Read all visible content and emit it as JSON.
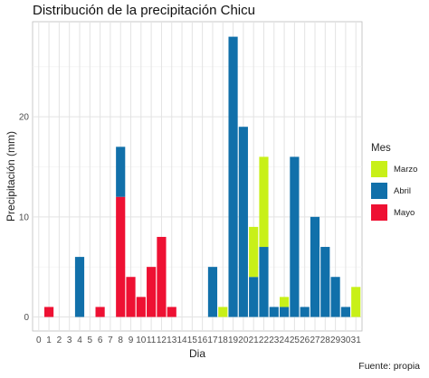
{
  "chart_data": {
    "type": "bar",
    "stacked": true,
    "title": "Distribución de la precipitación Chicu",
    "xlabel": "Dia",
    "ylabel": "Precipitación (mm)",
    "caption": "Fuente: propia",
    "legend_title": "Mes",
    "legend_position": "right",
    "grid": true,
    "categories": [
      0,
      1,
      2,
      3,
      4,
      5,
      6,
      7,
      8,
      9,
      10,
      11,
      12,
      13,
      14,
      15,
      16,
      17,
      18,
      19,
      20,
      21,
      22,
      23,
      24,
      25,
      26,
      27,
      28,
      29,
      30,
      31
    ],
    "y_ticks": [
      0,
      10,
      20
    ],
    "ylim": [
      -1.4,
      29.5
    ],
    "series": [
      {
        "name": "Marzo",
        "color": "#c8f018",
        "values": [
          0,
          0,
          0,
          0,
          0,
          0,
          0,
          0,
          0,
          0,
          0,
          0,
          0,
          0,
          0,
          0,
          0,
          0,
          1,
          0,
          0,
          5,
          9,
          0,
          1,
          0,
          0,
          0,
          0,
          0,
          0,
          3
        ]
      },
      {
        "name": "Abril",
        "color": "#1170aa",
        "values": [
          0,
          0,
          0,
          0,
          6,
          0,
          0,
          0,
          5,
          0,
          0,
          0,
          0,
          0,
          0,
          0,
          0,
          5,
          0,
          28,
          19,
          4,
          7,
          1,
          1,
          16,
          1,
          10,
          7,
          4,
          1,
          0
        ]
      },
      {
        "name": "Mayo",
        "color": "#ee1133",
        "values": [
          0,
          1,
          0,
          0,
          0,
          0,
          1,
          0,
          12,
          4,
          2,
          5,
          8,
          1,
          0,
          0,
          0,
          0,
          0,
          0,
          0,
          0,
          0,
          0,
          0,
          0,
          0,
          0,
          0,
          0,
          0,
          0
        ]
      }
    ]
  }
}
